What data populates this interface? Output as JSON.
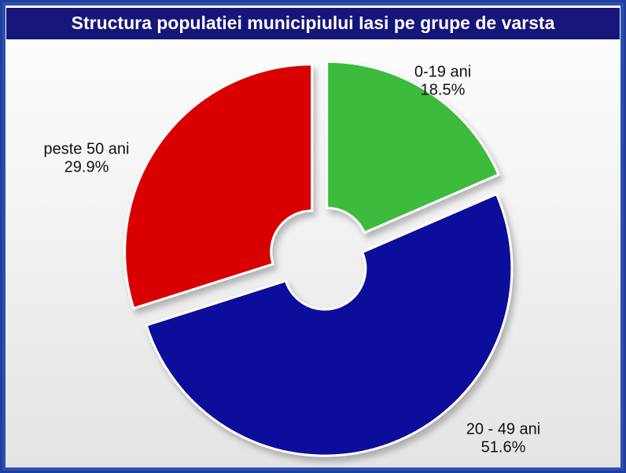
{
  "chart_data": {
    "type": "pie",
    "title": "Structura populatiei municipiului Iasi pe grupe de varsta",
    "categories": [
      "0-19 ani",
      "20 - 49 ani",
      "peste 50 ani"
    ],
    "values": [
      18.5,
      51.6,
      29.9
    ],
    "value_labels": [
      "18.5%",
      "51.6%",
      "29.9%"
    ],
    "colors": [
      "#3dbb3d",
      "#0a0a9c",
      "#d80000"
    ]
  }
}
